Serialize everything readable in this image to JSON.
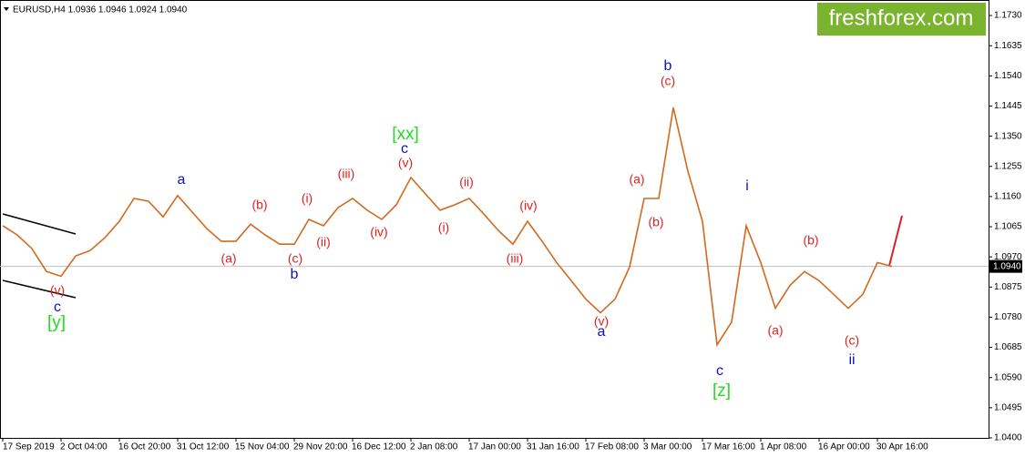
{
  "chart_data": {
    "type": "line",
    "title": "EURUSD,H4  1.0936 1.0946 1.0924 1.0940",
    "watermark": "freshforex.com",
    "categories": [
      "17 Sep 2019",
      null,
      null,
      null,
      "2 Oct 04:00",
      null,
      null,
      null,
      "16 Oct 20:00",
      null,
      null,
      null,
      "31 Oct 12:00",
      null,
      null,
      null,
      "15 Nov 04:00",
      null,
      null,
      null,
      "29 Nov 20:00",
      null,
      null,
      null,
      "16 Dec 12:00",
      null,
      null,
      null,
      "2 Jan 08:00",
      null,
      null,
      null,
      "17 Jan 00:00",
      null,
      null,
      null,
      "31 Jan 16:00",
      null,
      null,
      null,
      "17 Feb 08:00",
      null,
      null,
      null,
      "3 Mar 00:00",
      null,
      null,
      null,
      "17 Mar 16:00",
      null,
      null,
      null,
      "1 Apr 08:00",
      null,
      null,
      null,
      "16 Apr 00:00",
      null,
      null,
      null,
      "30 Apr 16:00",
      null
    ],
    "series": [
      {
        "name": "EURUSD",
        "color": "#d2691e",
        "values": [
          1.1068,
          1.1039,
          1.0996,
          1.0924,
          1.0909,
          1.0973,
          1.099,
          1.103,
          1.1082,
          1.1154,
          1.1145,
          1.1096,
          1.1163,
          1.1111,
          1.1059,
          1.1019,
          1.1019,
          1.1073,
          1.1039,
          1.101,
          1.101,
          1.1088,
          1.1068,
          1.1125,
          1.1154,
          1.1117,
          1.1088,
          1.1134,
          1.122,
          1.1168,
          1.1117,
          1.1134,
          1.1154,
          1.1105,
          1.1053,
          1.101,
          1.1082,
          1.1019,
          1.0952,
          1.0895,
          1.0837,
          1.0794,
          1.0837,
          1.0938,
          1.1154,
          1.1154,
          1.144,
          1.124,
          1.1082,
          1.0693,
          1.0765,
          1.1068,
          1.0952,
          1.0808,
          1.088,
          1.0924,
          1.0895,
          1.0852,
          1.0808,
          1.0852,
          1.0952,
          1.094
        ]
      }
    ],
    "ylim": [
      1.04,
      1.1756
    ],
    "yticks": [
      {
        "value": 1.173,
        "label": "1.1730"
      },
      1.1635,
      {
        "value": 1.154,
        "label": "1.1540"
      },
      1.1445,
      {
        "value": 1.135,
        "label": "1.1350"
      },
      1.1255,
      {
        "value": 1.116,
        "label": "1.1160"
      },
      1.1065,
      {
        "value": 1.097,
        "label": "1.0970"
      },
      1.0875,
      {
        "value": 1.078,
        "label": "1.0780"
      },
      1.0685,
      {
        "value": 1.059,
        "label": "1.0590"
      },
      1.0495,
      {
        "value": 1.04,
        "label": "1.0400"
      }
    ],
    "last_price": {
      "value": 1.094,
      "label": "1.0940"
    },
    "annotations": [
      {
        "text": "(v)",
        "color": "#e02020"
      },
      {
        "text": "c",
        "color": "#1010c0"
      },
      {
        "text": "[y]",
        "color": "#22dd22"
      },
      {
        "text": "a",
        "color": "#1010c0"
      },
      {
        "text": "(a)",
        "color": "#e02020"
      },
      {
        "text": "(b)",
        "color": "#e02020"
      },
      {
        "text": "(c)",
        "color": "#e02020"
      },
      {
        "text": "b",
        "color": "#1010c0"
      },
      {
        "text": "(i)",
        "color": "#e02020"
      },
      {
        "text": "(ii)",
        "color": "#e02020"
      },
      {
        "text": "(iii)",
        "color": "#e02020"
      },
      {
        "text": "(iv)",
        "color": "#e02020"
      },
      {
        "text": "(v)",
        "color": "#e02020"
      },
      {
        "text": "c",
        "color": "#1010c0"
      },
      {
        "text": "[xx]",
        "color": "#22dd22"
      },
      {
        "text": "(i)",
        "color": "#e02020"
      },
      {
        "text": "(ii)",
        "color": "#e02020"
      },
      {
        "text": "(iii)",
        "color": "#e02020"
      },
      {
        "text": "(iv)",
        "color": "#e02020"
      },
      {
        "text": "(v)",
        "color": "#e02020"
      },
      {
        "text": "a",
        "color": "#1010c0"
      },
      {
        "text": "(a)",
        "color": "#e02020"
      },
      {
        "text": "(b)",
        "color": "#e02020"
      },
      {
        "text": "(c)",
        "color": "#e02020"
      },
      {
        "text": "b",
        "color": "#1010c0"
      },
      {
        "text": "c",
        "color": "#1010c0"
      },
      {
        "text": "[z]",
        "color": "#22dd22"
      },
      {
        "text": "i",
        "color": "#1010c0"
      },
      {
        "text": "(a)",
        "color": "#e02020"
      },
      {
        "text": "(b)",
        "color": "#e02020"
      },
      {
        "text": "(c)",
        "color": "#e02020"
      },
      {
        "text": "ii",
        "color": "#1010c0"
      }
    ]
  }
}
